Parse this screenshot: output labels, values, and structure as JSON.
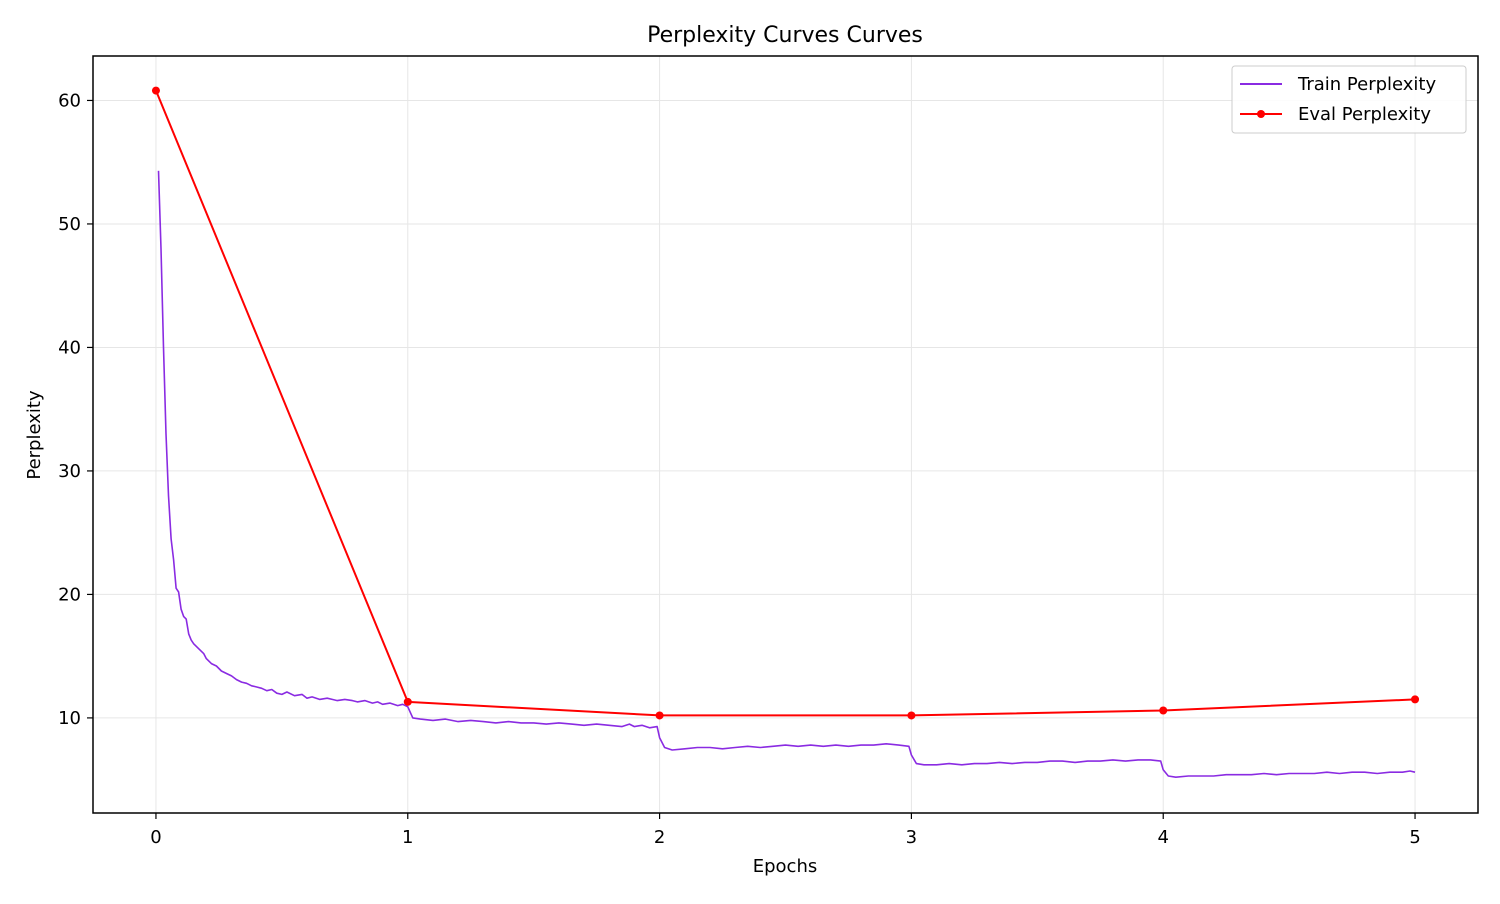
{
  "chart_data": {
    "type": "line",
    "title": "Perplexity Curves Curves",
    "xlabel": "Epochs",
    "ylabel": "Perplexity",
    "xlim": [
      -0.25,
      5.25
    ],
    "ylim": [
      2.3,
      63.6
    ],
    "xticks": [
      0,
      1,
      2,
      3,
      4,
      5
    ],
    "yticks": [
      10,
      20,
      30,
      40,
      50,
      60
    ],
    "grid": true,
    "legend_position": "top-right",
    "series": [
      {
        "name": "Train Perplexity",
        "color": "#8a2be2",
        "marker": "none",
        "x": [
          0.01,
          0.02,
          0.03,
          0.04,
          0.05,
          0.06,
          0.07,
          0.08,
          0.09,
          0.1,
          0.11,
          0.12,
          0.13,
          0.14,
          0.15,
          0.17,
          0.19,
          0.2,
          0.22,
          0.24,
          0.26,
          0.28,
          0.3,
          0.32,
          0.34,
          0.36,
          0.38,
          0.4,
          0.42,
          0.44,
          0.46,
          0.48,
          0.5,
          0.52,
          0.55,
          0.58,
          0.6,
          0.62,
          0.65,
          0.68,
          0.7,
          0.72,
          0.75,
          0.78,
          0.8,
          0.83,
          0.86,
          0.88,
          0.9,
          0.93,
          0.96,
          0.98,
          1.0,
          1.02,
          1.05,
          1.1,
          1.15,
          1.2,
          1.25,
          1.3,
          1.35,
          1.4,
          1.45,
          1.5,
          1.55,
          1.6,
          1.65,
          1.7,
          1.75,
          1.8,
          1.85,
          1.88,
          1.9,
          1.93,
          1.96,
          1.99,
          2.0,
          2.02,
          2.05,
          2.1,
          2.15,
          2.2,
          2.25,
          2.3,
          2.35,
          2.4,
          2.45,
          2.5,
          2.55,
          2.6,
          2.65,
          2.7,
          2.75,
          2.8,
          2.85,
          2.9,
          2.95,
          2.99,
          3.0,
          3.02,
          3.05,
          3.1,
          3.15,
          3.2,
          3.25,
          3.3,
          3.35,
          3.4,
          3.45,
          3.5,
          3.55,
          3.6,
          3.65,
          3.7,
          3.75,
          3.8,
          3.85,
          3.9,
          3.95,
          3.99,
          4.0,
          4.02,
          4.05,
          4.1,
          4.15,
          4.2,
          4.25,
          4.3,
          4.35,
          4.4,
          4.45,
          4.5,
          4.55,
          4.6,
          4.65,
          4.7,
          4.75,
          4.8,
          4.85,
          4.9,
          4.95,
          4.98,
          5.0
        ],
        "y": [
          54.3,
          48.0,
          40.0,
          33.0,
          28.0,
          24.5,
          22.8,
          20.5,
          20.2,
          18.8,
          18.2,
          18.0,
          16.8,
          16.3,
          16.0,
          15.6,
          15.2,
          14.8,
          14.4,
          14.2,
          13.8,
          13.6,
          13.4,
          13.1,
          12.9,
          12.8,
          12.6,
          12.5,
          12.4,
          12.2,
          12.3,
          12.0,
          11.9,
          12.1,
          11.8,
          11.9,
          11.6,
          11.7,
          11.5,
          11.6,
          11.5,
          11.4,
          11.5,
          11.4,
          11.3,
          11.4,
          11.2,
          11.3,
          11.1,
          11.2,
          11.0,
          11.1,
          10.9,
          10.0,
          9.9,
          9.8,
          9.9,
          9.7,
          9.8,
          9.7,
          9.6,
          9.7,
          9.6,
          9.6,
          9.5,
          9.6,
          9.5,
          9.4,
          9.5,
          9.4,
          9.3,
          9.5,
          9.3,
          9.4,
          9.2,
          9.3,
          8.4,
          7.6,
          7.4,
          7.5,
          7.6,
          7.6,
          7.5,
          7.6,
          7.7,
          7.6,
          7.7,
          7.8,
          7.7,
          7.8,
          7.7,
          7.8,
          7.7,
          7.8,
          7.8,
          7.9,
          7.8,
          7.7,
          7.0,
          6.3,
          6.2,
          6.2,
          6.3,
          6.2,
          6.3,
          6.3,
          6.4,
          6.3,
          6.4,
          6.4,
          6.5,
          6.5,
          6.4,
          6.5,
          6.5,
          6.6,
          6.5,
          6.6,
          6.6,
          6.5,
          5.8,
          5.3,
          5.2,
          5.3,
          5.3,
          5.3,
          5.4,
          5.4,
          5.4,
          5.5,
          5.4,
          5.5,
          5.5,
          5.5,
          5.6,
          5.5,
          5.6,
          5.6,
          5.5,
          5.6,
          5.6,
          5.7,
          5.6
        ]
      },
      {
        "name": "Eval Perplexity",
        "color": "#ff0000",
        "marker": "circle",
        "x": [
          0,
          1,
          2,
          3,
          4,
          5
        ],
        "y": [
          60.8,
          11.3,
          10.2,
          10.2,
          10.6,
          11.5
        ]
      }
    ]
  }
}
